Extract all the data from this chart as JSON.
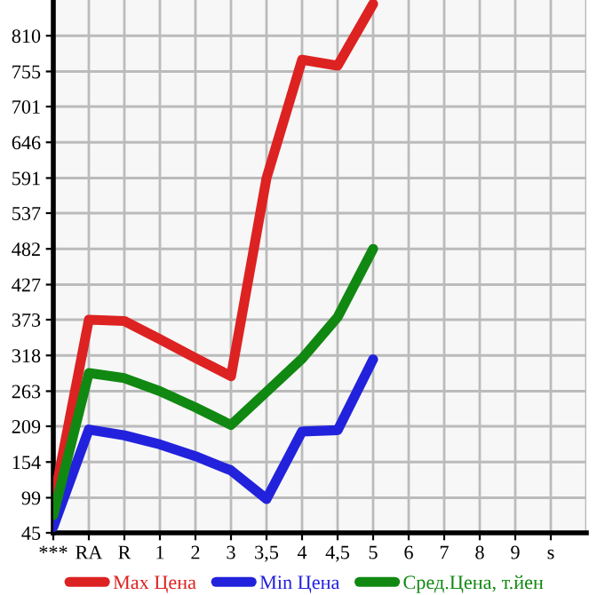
{
  "chart_data": {
    "type": "line",
    "categories": [
      "***",
      "RA",
      "R",
      "1",
      "2",
      "3",
      "3,5",
      "4",
      "4,5",
      "5",
      "6",
      "7",
      "8",
      "9",
      "s"
    ],
    "series": [
      {
        "name": "Max Цена",
        "color": "#dd2222",
        "values": [
          91,
          373,
          371,
          343,
          314,
          286,
          591,
          773,
          764,
          859,
          null,
          null,
          null,
          null,
          null
        ]
      },
      {
        "name": "Min Цена",
        "color": "#2222dd",
        "values": [
          54,
          204,
          195,
          181,
          163,
          141,
          97,
          201,
          203,
          312,
          null,
          null,
          null,
          null,
          null
        ]
      },
      {
        "name": "Сред.Цена, т.йен",
        "color": "#118811",
        "values": [
          72,
          291,
          283,
          263,
          238,
          211,
          262,
          313,
          377,
          482,
          null,
          null,
          null,
          null,
          null
        ]
      }
    ],
    "ylim": [
      45,
      865
    ],
    "yticks": [
      45,
      99,
      154,
      209,
      263,
      318,
      373,
      427,
      482,
      537,
      591,
      646,
      701,
      755,
      810
    ],
    "grid": true,
    "legend": "bottom",
    "marker": "none",
    "line_style": "solid"
  }
}
